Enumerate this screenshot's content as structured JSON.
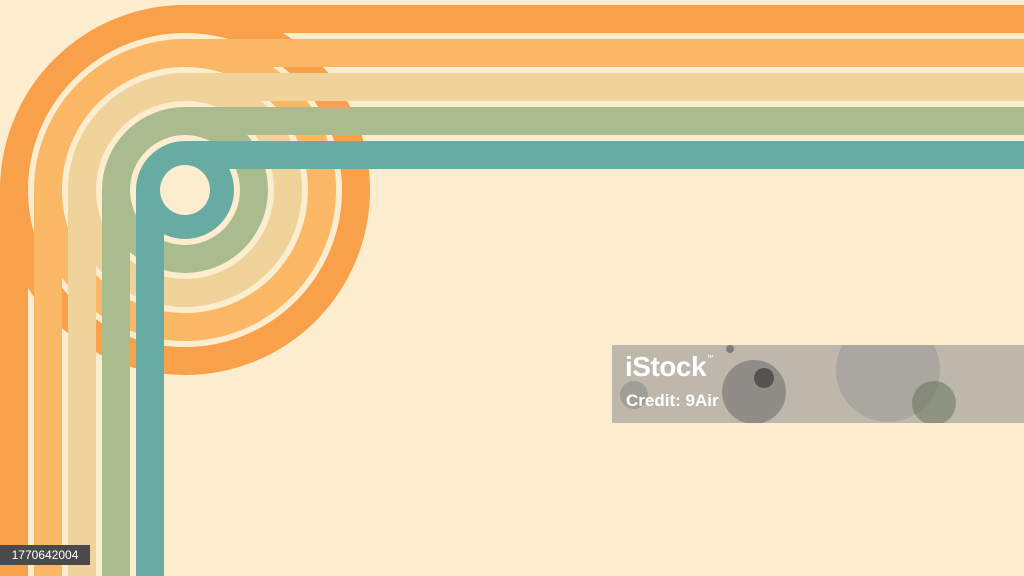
{
  "background_color": "#fdedcf",
  "stripe_colors": [
    "#f9a04a",
    "#fab766",
    "#f0d39b",
    "#aabc8e",
    "#68aba3"
  ],
  "watermark": {
    "brand": "iStock",
    "credit": "Credit: 9Air",
    "image_id": "1770642004"
  }
}
